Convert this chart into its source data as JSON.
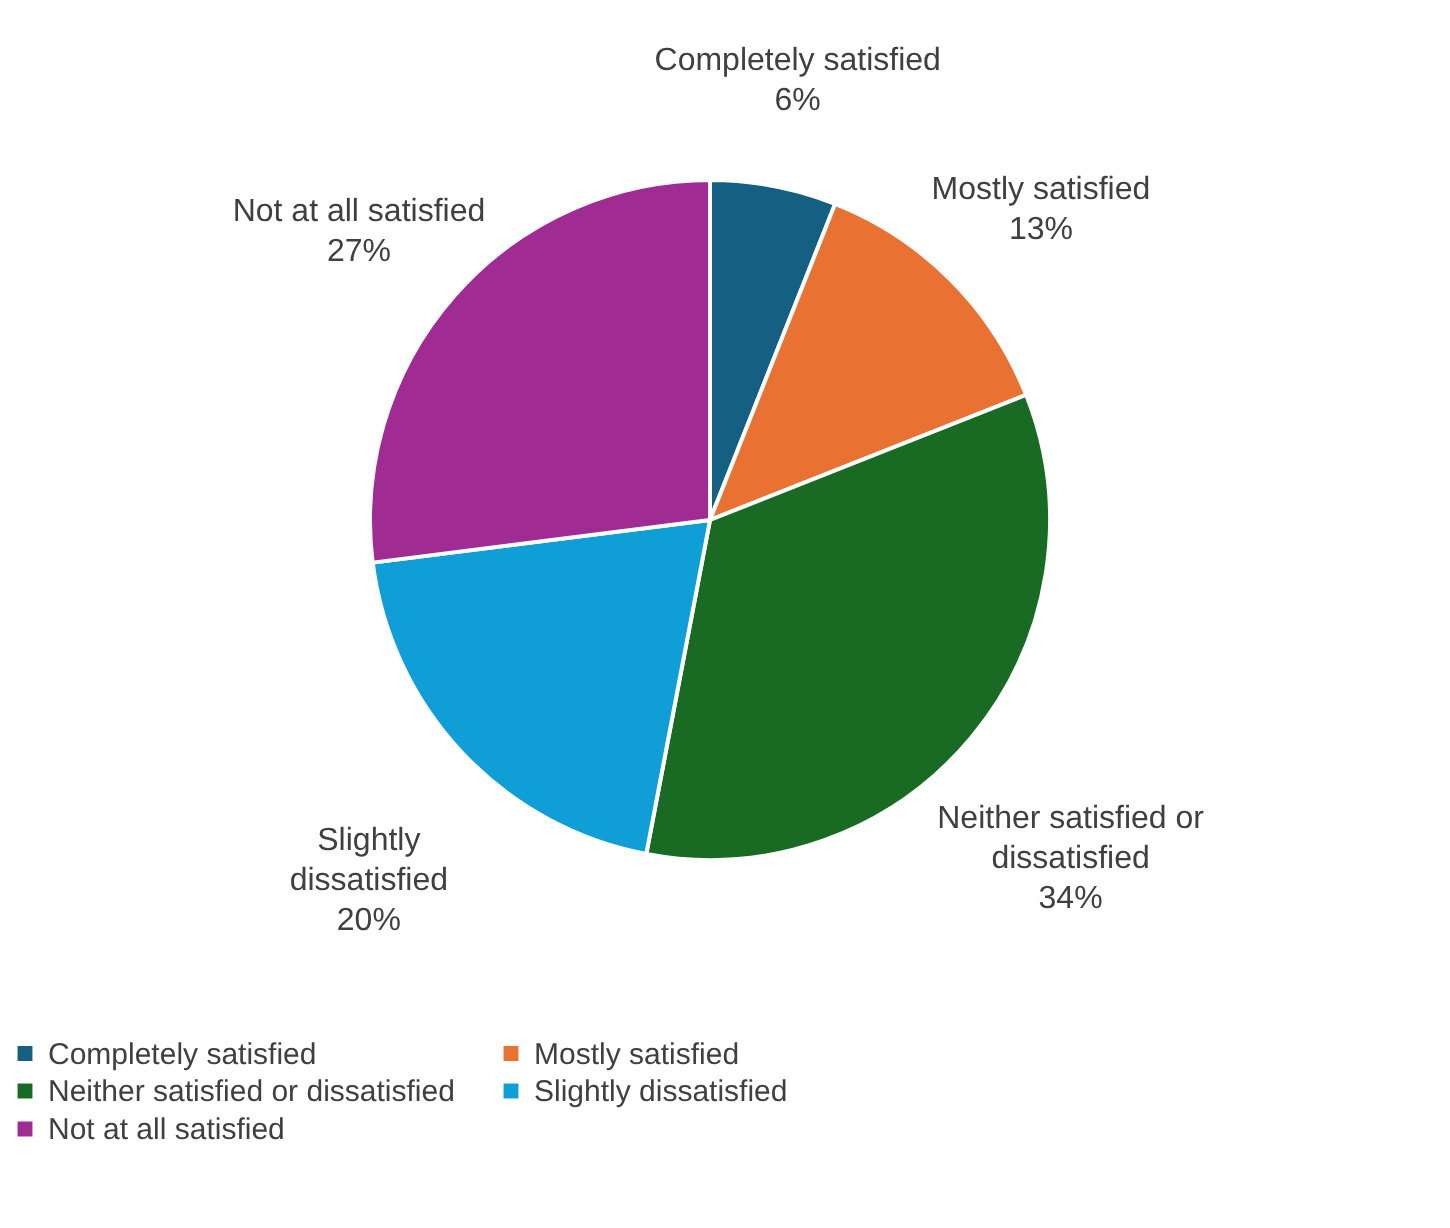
{
  "chart_data": {
    "type": "pie",
    "categories": [
      "Completely satisfied",
      "Mostly satisfied",
      "Neither satisfied or dissatisfied",
      "Slightly dissatisfied",
      "Not at all satisfied"
    ],
    "values": [
      6,
      13,
      34,
      20,
      27
    ],
    "value_labels": [
      "6%",
      "13%",
      "34%",
      "20%",
      "27%"
    ],
    "colors": [
      "#156082",
      "#e97132",
      "#196b24",
      "#0f9ed5",
      "#a02b93"
    ],
    "legend": "bottom"
  }
}
